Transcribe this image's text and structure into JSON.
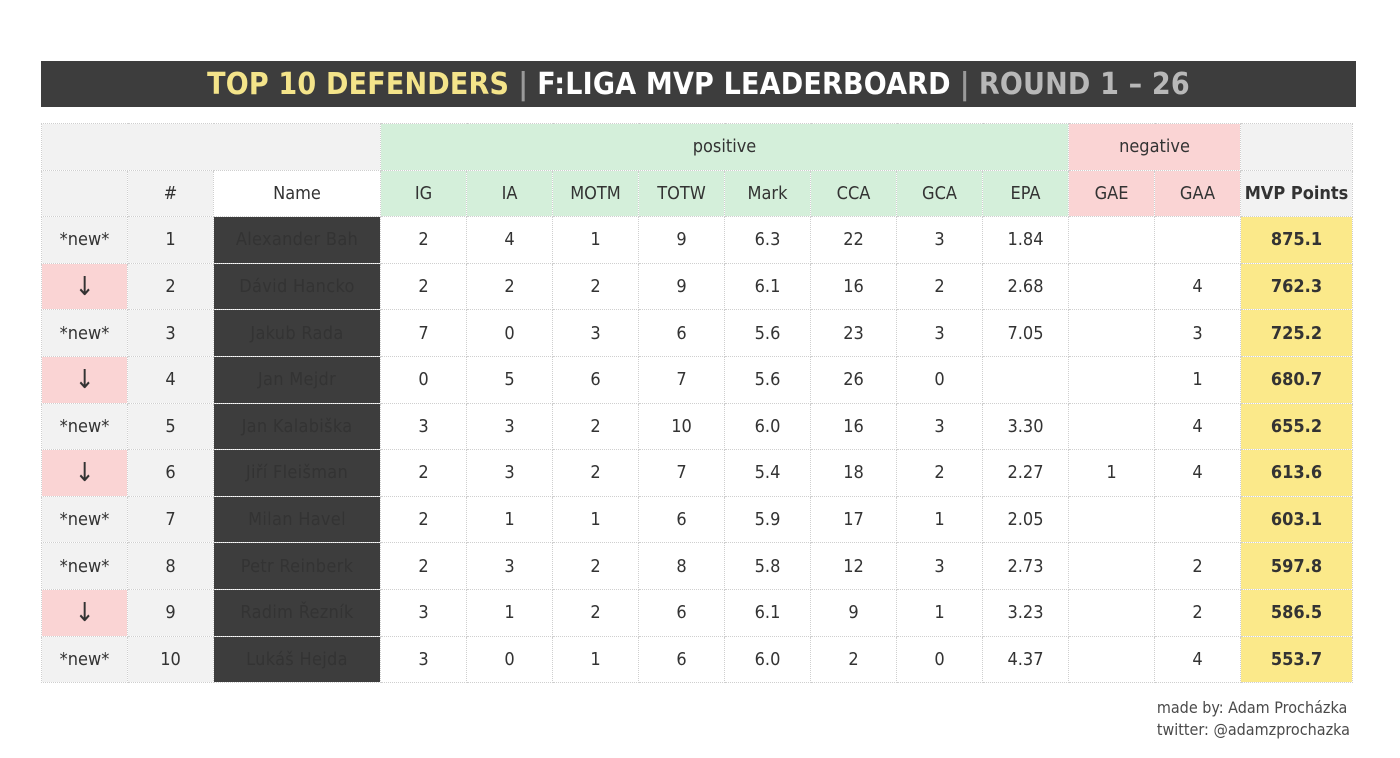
{
  "title": {
    "part1": "TOP 10 DEFENDERS",
    "sep": "|",
    "part2": "F:LIGA MVP LEADERBOARD",
    "part3": "ROUND 1 – 26"
  },
  "groups": {
    "positive": "positive",
    "negative": "negative"
  },
  "chart_data": {
    "type": "table",
    "columns": [
      "",
      "#",
      "Name",
      "IG",
      "IA",
      "MOTM",
      "TOTW",
      "Mark",
      "CCA",
      "GCA",
      "EPA",
      "GAE",
      "GAA",
      "MVP Points"
    ],
    "rows": [
      [
        "*new*",
        "1",
        "Alexander Bah",
        "2",
        "4",
        "1",
        "9",
        "6.3",
        "22",
        "3",
        "1.84",
        "",
        "",
        "875.1"
      ],
      [
        "↓",
        "2",
        "Dávid Hancko",
        "2",
        "2",
        "2",
        "9",
        "6.1",
        "16",
        "2",
        "2.68",
        "",
        "4",
        "762.3"
      ],
      [
        "*new*",
        "3",
        "Jakub Rada",
        "7",
        "0",
        "3",
        "6",
        "5.6",
        "23",
        "3",
        "7.05",
        "",
        "3",
        "725.2"
      ],
      [
        "↓",
        "4",
        "Jan Mejdr",
        "0",
        "5",
        "6",
        "7",
        "5.6",
        "26",
        "0",
        "",
        "",
        "1",
        "680.7"
      ],
      [
        "*new*",
        "5",
        "Jan Kalabiška",
        "3",
        "3",
        "2",
        "10",
        "6.0",
        "16",
        "3",
        "3.30",
        "",
        "4",
        "655.2"
      ],
      [
        "↓",
        "6",
        "Jiří Fleišman",
        "2",
        "3",
        "2",
        "7",
        "5.4",
        "18",
        "2",
        "2.27",
        "1",
        "4",
        "613.6"
      ],
      [
        "*new*",
        "7",
        "Milan Havel",
        "2",
        "1",
        "1",
        "6",
        "5.9",
        "17",
        "1",
        "2.05",
        "",
        "",
        "603.1"
      ],
      [
        "*new*",
        "8",
        "Petr Reinberk",
        "2",
        "3",
        "2",
        "8",
        "5.8",
        "12",
        "3",
        "2.73",
        "",
        "2",
        "597.8"
      ],
      [
        "↓",
        "9",
        "Radim Řezník",
        "3",
        "1",
        "2",
        "6",
        "6.1",
        "9",
        "1",
        "3.23",
        "",
        "2",
        "586.5"
      ],
      [
        "*new*",
        "10",
        "Lukáš Hejda",
        "3",
        "0",
        "1",
        "6",
        "6.0",
        "2",
        "0",
        "4.37",
        "",
        "4",
        "553.7"
      ]
    ]
  },
  "credits": {
    "line1": "made by: Adam Procházka",
    "line2": "twitter: @adamzprochazka"
  },
  "colors": {
    "title_bg": "#3d3d3d",
    "title_accent": "#f4e48a",
    "positive_bg": "#d4efda",
    "negative_bg": "#fad4d4",
    "mvp_bg": "#fbe98a",
    "name_bg": "#3d3d3d",
    "neutral_bg": "#f2f2f2"
  }
}
